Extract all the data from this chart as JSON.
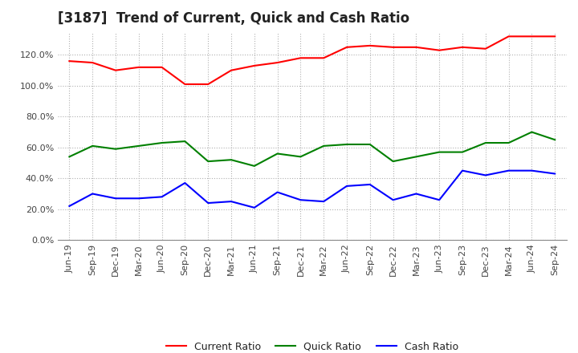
{
  "title": "[3187]  Trend of Current, Quick and Cash Ratio",
  "x_labels": [
    "Jun-19",
    "Sep-19",
    "Dec-19",
    "Mar-20",
    "Jun-20",
    "Sep-20",
    "Dec-20",
    "Mar-21",
    "Jun-21",
    "Sep-21",
    "Dec-21",
    "Mar-22",
    "Jun-22",
    "Sep-22",
    "Dec-22",
    "Mar-23",
    "Jun-23",
    "Sep-23",
    "Dec-23",
    "Mar-24",
    "Jun-24",
    "Sep-24"
  ],
  "current_ratio": [
    116,
    115,
    110,
    112,
    112,
    101,
    101,
    110,
    113,
    115,
    118,
    118,
    125,
    126,
    125,
    125,
    123,
    125,
    124,
    132,
    132,
    132
  ],
  "quick_ratio": [
    54,
    61,
    59,
    61,
    63,
    64,
    51,
    52,
    48,
    56,
    54,
    61,
    62,
    62,
    51,
    54,
    57,
    57,
    63,
    63,
    70,
    65
  ],
  "cash_ratio": [
    22,
    30,
    27,
    27,
    28,
    37,
    24,
    25,
    21,
    31,
    26,
    25,
    35,
    36,
    26,
    30,
    26,
    45,
    42,
    45,
    45,
    43
  ],
  "current_color": "#ff0000",
  "quick_color": "#008000",
  "cash_color": "#0000ff",
  "background_color": "#ffffff",
  "grid_color": "#b0b0b0",
  "ylim": [
    0,
    135
  ],
  "yticks": [
    0,
    20,
    40,
    60,
    80,
    100,
    120
  ],
  "title_fontsize": 12,
  "tick_fontsize": 8,
  "legend_fontsize": 9
}
